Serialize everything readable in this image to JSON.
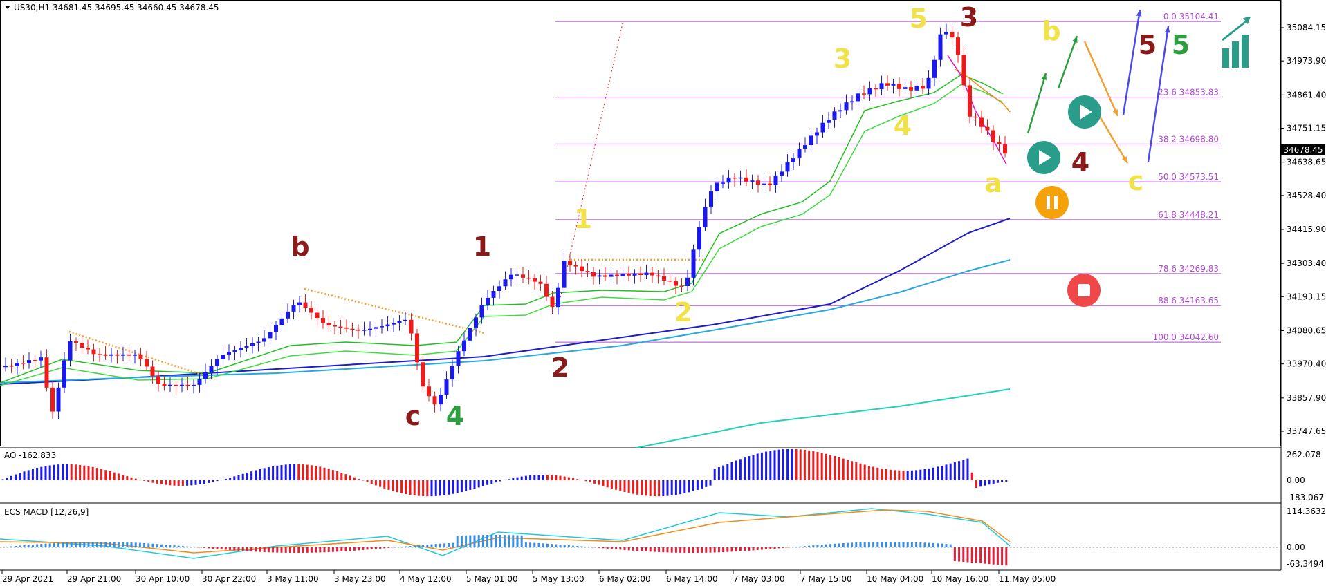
{
  "header": {
    "symbol": "US30,H1",
    "ohlc": "34681.45 34695.45 34660.45 34678.45"
  },
  "chart_data": [
    {
      "type": "line",
      "title": "US30,H1 34681.45 34695.45 34660.45 34678.45",
      "ylim": [
        33700,
        35160
      ],
      "y_ticks": [
        "35084.15",
        "34973.90",
        "34861.40",
        "34751.15",
        "34638.65",
        "34528.40",
        "34415.90",
        "34303.40",
        "34193.15",
        "34080.65",
        "33970.40",
        "33857.90",
        "33747.65"
      ],
      "current_price": "34678.45",
      "x_labels": [
        "29 Apr 2021",
        "29 Apr 21:00",
        "30 Apr 10:00",
        "30 Apr 22:00",
        "3 May 11:00",
        "3 May 23:00",
        "4 May 12:00",
        "5 May 01:00",
        "5 May 13:00",
        "6 May 02:00",
        "6 May 14:00",
        "7 May 03:00",
        "7 May 15:00",
        "10 May 04:00",
        "10 May 16:00",
        "11 May 05:00"
      ],
      "fibonacci_levels": [
        {
          "label": "0.0 35104.41",
          "value": 35104.41
        },
        {
          "label": "23.6 34853.83",
          "value": 34853.83
        },
        {
          "label": "38.2 34698.80",
          "value": 34698.8
        },
        {
          "label": "50.0 34573.51",
          "value": 34573.51
        },
        {
          "label": "61.8 34448.21",
          "value": 34448.21
        },
        {
          "label": "78.6 34269.83",
          "value": 34269.83
        },
        {
          "label": "88.6 34163.65",
          "value": 34163.65
        },
        {
          "label": "100.0 34042.60",
          "value": 34042.6
        }
      ],
      "wave_labels": [
        {
          "text": "b",
          "color": "#8b1a1a"
        },
        {
          "text": "1",
          "color": "#8b1a1a"
        },
        {
          "text": "c",
          "color": "#8b1a1a"
        },
        {
          "text": "4",
          "color": "#2e9e3e"
        },
        {
          "text": "2",
          "color": "#8b1a1a"
        },
        {
          "text": "1",
          "color": "#f2e24a"
        },
        {
          "text": "2",
          "color": "#f2e24a"
        },
        {
          "text": "3",
          "color": "#f2e24a"
        },
        {
          "text": "4",
          "color": "#f2e24a"
        },
        {
          "text": "5",
          "color": "#f2e24a"
        },
        {
          "text": "3",
          "color": "#8b1a1a"
        },
        {
          "text": "a",
          "color": "#f2e24a"
        },
        {
          "text": "b",
          "color": "#f2e24a"
        },
        {
          "text": "c",
          "color": "#f2e24a"
        },
        {
          "text": "4",
          "color": "#8b1a1a"
        },
        {
          "text": "5",
          "color": "#8b1a1a"
        },
        {
          "text": "5",
          "color": "#2e9e3e"
        }
      ]
    },
    {
      "type": "bar",
      "title": "AO -162.833",
      "y_ticks": [
        "262.078",
        "0.00",
        "-183.067"
      ]
    },
    {
      "type": "bar",
      "title": "ECS MACD [12,26,9]",
      "y_ticks": [
        "114.3632",
        "0.00",
        "-63.3494"
      ]
    }
  ],
  "colors": {
    "bull": "#1a1af0",
    "bear": "#f01a1a",
    "fib": "#b44ad6",
    "ema_fast": "#21c021",
    "sma_blue": "#1c1cc8",
    "sma_cyan": "#26a8e0"
  },
  "icons": {
    "play": "play-icon",
    "pause": "pause-icon",
    "stop": "stop-icon",
    "logo": "chart-growth-icon"
  }
}
